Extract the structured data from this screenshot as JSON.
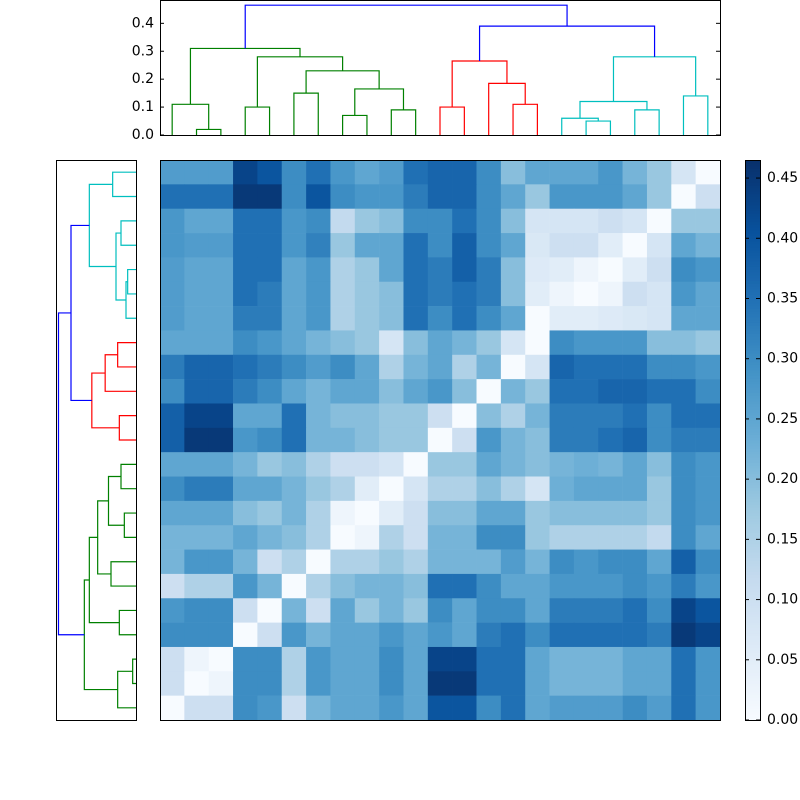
{
  "chart_data": {
    "type": "clustermap",
    "cmap": "Blues",
    "dendrogram_lim": [
      0,
      0.48
    ],
    "dendrogram_ticks": [
      {
        "value": 0,
        "label": "0.0"
      },
      {
        "value": 0.1,
        "label": "0.1"
      },
      {
        "value": 0.2,
        "label": "0.2"
      },
      {
        "value": 0.3,
        "label": "0.3"
      },
      {
        "value": 0.4,
        "label": "0.4"
      }
    ],
    "clim": [
      0,
      0.465
    ],
    "cticks": [
      {
        "value": 0,
        "label": "0.00"
      },
      {
        "value": 0.05,
        "label": "0.05"
      },
      {
        "value": 0.1,
        "label": "0.10"
      },
      {
        "value": 0.15,
        "label": "0.15"
      },
      {
        "value": 0.2,
        "label": "0.20"
      },
      {
        "value": 0.25,
        "label": "0.25"
      },
      {
        "value": 0.3,
        "label": "0.30"
      },
      {
        "value": 0.35,
        "label": "0.35"
      },
      {
        "value": 0.4,
        "label": "0.40"
      },
      {
        "value": 0.45,
        "label": "0.45"
      }
    ],
    "links": [
      {
        "color": "#008000",
        "x": [
          1,
          1,
          2,
          2
        ],
        "y": [
          0,
          0.02,
          0.02,
          0
        ]
      },
      {
        "color": "#008000",
        "x": [
          0,
          0,
          1.5,
          1.5
        ],
        "y": [
          0,
          0.11,
          0.11,
          0.02
        ]
      },
      {
        "color": "#008000",
        "x": [
          3,
          3,
          4,
          4
        ],
        "y": [
          0,
          0.1,
          0.1,
          0
        ]
      },
      {
        "color": "#008000",
        "x": [
          5,
          5,
          6,
          6
        ],
        "y": [
          0,
          0.15,
          0.15,
          0
        ]
      },
      {
        "color": "#008000",
        "x": [
          7,
          7,
          8,
          8
        ],
        "y": [
          0,
          0.07,
          0.07,
          0
        ]
      },
      {
        "color": "#008000",
        "x": [
          9,
          9,
          10,
          10
        ],
        "y": [
          0,
          0.09,
          0.09,
          0
        ]
      },
      {
        "color": "#008000",
        "x": [
          7.5,
          7.5,
          9.5,
          9.5
        ],
        "y": [
          0.07,
          0.165,
          0.165,
          0.09
        ]
      },
      {
        "color": "#008000",
        "x": [
          5.5,
          5.5,
          8.5,
          8.5
        ],
        "y": [
          0.15,
          0.23,
          0.23,
          0.165
        ]
      },
      {
        "color": "#008000",
        "x": [
          3.5,
          3.5,
          7,
          7
        ],
        "y": [
          0.1,
          0.28,
          0.28,
          0.23
        ]
      },
      {
        "color": "#008000",
        "x": [
          0.75,
          0.75,
          5.25,
          5.25
        ],
        "y": [
          0.11,
          0.31,
          0.31,
          0.28
        ]
      },
      {
        "color": "#ff0000",
        "x": [
          11,
          11,
          12,
          12
        ],
        "y": [
          0,
          0.1,
          0.1,
          0
        ]
      },
      {
        "color": "#ff0000",
        "x": [
          14,
          14,
          15,
          15
        ],
        "y": [
          0,
          0.11,
          0.11,
          0
        ]
      },
      {
        "color": "#ff0000",
        "x": [
          13,
          13,
          14.5,
          14.5
        ],
        "y": [
          0,
          0.185,
          0.185,
          0.11
        ]
      },
      {
        "color": "#ff0000",
        "x": [
          11.5,
          11.5,
          13.75,
          13.75
        ],
        "y": [
          0.1,
          0.265,
          0.265,
          0.185
        ]
      },
      {
        "color": "#00bfbf",
        "x": [
          17,
          17,
          18,
          18
        ],
        "y": [
          0,
          0.05,
          0.05,
          0
        ]
      },
      {
        "color": "#00bfbf",
        "x": [
          16,
          16,
          17.5,
          17.5
        ],
        "y": [
          0,
          0.06,
          0.06,
          0.05
        ]
      },
      {
        "color": "#00bfbf",
        "x": [
          19,
          19,
          20,
          20
        ],
        "y": [
          0,
          0.09,
          0.09,
          0
        ]
      },
      {
        "color": "#00bfbf",
        "x": [
          16.75,
          16.75,
          19.5,
          19.5
        ],
        "y": [
          0.06,
          0.12,
          0.12,
          0.09
        ]
      },
      {
        "color": "#00bfbf",
        "x": [
          21,
          21,
          22,
          22
        ],
        "y": [
          0,
          0.14,
          0.14,
          0
        ]
      },
      {
        "color": "#00bfbf",
        "x": [
          18.125,
          18.125,
          21.5,
          21.5
        ],
        "y": [
          0.12,
          0.28,
          0.28,
          0.14
        ]
      },
      {
        "color": "#0000ff",
        "x": [
          12.625,
          12.625,
          19.8125,
          19.8125
        ],
        "y": [
          0.265,
          0.39,
          0.39,
          0.28
        ]
      },
      {
        "color": "#0000ff",
        "x": [
          3,
          3,
          16.21875,
          16.21875
        ],
        "y": [
          0.31,
          0.465,
          0.465,
          0.39
        ]
      }
    ],
    "values": [
      [
        0.27,
        0.27,
        0.27,
        0.43,
        0.4,
        0.3,
        0.35,
        0.28,
        0.25,
        0.27,
        0.35,
        0.37,
        0.37,
        0.3,
        0.2,
        0.25,
        0.25,
        0.25,
        0.28,
        0.22,
        0.18,
        0.08,
        0.0
      ],
      [
        0.35,
        0.35,
        0.35,
        0.45,
        0.45,
        0.3,
        0.4,
        0.3,
        0.28,
        0.28,
        0.33,
        0.37,
        0.37,
        0.3,
        0.25,
        0.18,
        0.28,
        0.28,
        0.28,
        0.25,
        0.18,
        0.0,
        0.1
      ],
      [
        0.28,
        0.25,
        0.25,
        0.35,
        0.35,
        0.28,
        0.3,
        0.12,
        0.18,
        0.2,
        0.3,
        0.3,
        0.35,
        0.3,
        0.2,
        0.08,
        0.08,
        0.08,
        0.1,
        0.08,
        0.0,
        0.18,
        0.18
      ],
      [
        0.28,
        0.27,
        0.27,
        0.35,
        0.35,
        0.28,
        0.32,
        0.18,
        0.25,
        0.25,
        0.35,
        0.3,
        0.38,
        0.3,
        0.25,
        0.07,
        0.1,
        0.1,
        0.05,
        0.0,
        0.08,
        0.25,
        0.22
      ],
      [
        0.27,
        0.25,
        0.25,
        0.35,
        0.35,
        0.25,
        0.28,
        0.15,
        0.18,
        0.25,
        0.35,
        0.33,
        0.38,
        0.33,
        0.2,
        0.06,
        0.05,
        0.02,
        0.0,
        0.05,
        0.1,
        0.3,
        0.28
      ],
      [
        0.27,
        0.25,
        0.25,
        0.35,
        0.33,
        0.25,
        0.28,
        0.15,
        0.18,
        0.2,
        0.35,
        0.33,
        0.35,
        0.33,
        0.2,
        0.05,
        0.02,
        0.0,
        0.02,
        0.1,
        0.08,
        0.28,
        0.25
      ],
      [
        0.27,
        0.25,
        0.25,
        0.33,
        0.33,
        0.25,
        0.28,
        0.15,
        0.18,
        0.2,
        0.35,
        0.3,
        0.35,
        0.3,
        0.25,
        0.0,
        0.05,
        0.05,
        0.06,
        0.07,
        0.08,
        0.25,
        0.25
      ],
      [
        0.25,
        0.25,
        0.25,
        0.3,
        0.28,
        0.25,
        0.22,
        0.2,
        0.18,
        0.08,
        0.2,
        0.25,
        0.22,
        0.18,
        0.08,
        0.0,
        0.3,
        0.28,
        0.28,
        0.28,
        0.2,
        0.2,
        0.18
      ],
      [
        0.33,
        0.37,
        0.37,
        0.35,
        0.33,
        0.3,
        0.27,
        0.3,
        0.25,
        0.15,
        0.22,
        0.25,
        0.15,
        0.22,
        0.0,
        0.08,
        0.37,
        0.35,
        0.35,
        0.35,
        0.3,
        0.3,
        0.28
      ],
      [
        0.3,
        0.37,
        0.37,
        0.33,
        0.3,
        0.25,
        0.22,
        0.25,
        0.25,
        0.2,
        0.25,
        0.28,
        0.2,
        0.0,
        0.22,
        0.18,
        0.35,
        0.35,
        0.37,
        0.37,
        0.35,
        0.35,
        0.3
      ],
      [
        0.38,
        0.43,
        0.43,
        0.25,
        0.25,
        0.35,
        0.22,
        0.2,
        0.2,
        0.18,
        0.18,
        0.1,
        0.0,
        0.2,
        0.15,
        0.22,
        0.33,
        0.33,
        0.33,
        0.35,
        0.3,
        0.35,
        0.35
      ],
      [
        0.38,
        0.45,
        0.45,
        0.28,
        0.3,
        0.35,
        0.22,
        0.22,
        0.2,
        0.18,
        0.18,
        0.0,
        0.1,
        0.28,
        0.22,
        0.2,
        0.33,
        0.33,
        0.35,
        0.37,
        0.3,
        0.33,
        0.33
      ],
      [
        0.25,
        0.25,
        0.25,
        0.22,
        0.18,
        0.2,
        0.15,
        0.1,
        0.1,
        0.08,
        0.0,
        0.18,
        0.18,
        0.25,
        0.22,
        0.2,
        0.22,
        0.23,
        0.22,
        0.25,
        0.2,
        0.3,
        0.28
      ],
      [
        0.3,
        0.33,
        0.33,
        0.25,
        0.25,
        0.22,
        0.18,
        0.15,
        0.05,
        0.0,
        0.08,
        0.15,
        0.15,
        0.2,
        0.15,
        0.08,
        0.23,
        0.25,
        0.25,
        0.25,
        0.18,
        0.3,
        0.28
      ],
      [
        0.25,
        0.25,
        0.25,
        0.2,
        0.18,
        0.22,
        0.15,
        0.02,
        0.0,
        0.05,
        0.1,
        0.2,
        0.2,
        0.25,
        0.25,
        0.18,
        0.2,
        0.2,
        0.2,
        0.2,
        0.18,
        0.3,
        0.28
      ],
      [
        0.22,
        0.22,
        0.22,
        0.25,
        0.22,
        0.2,
        0.15,
        0.0,
        0.02,
        0.15,
        0.1,
        0.22,
        0.22,
        0.3,
        0.3,
        0.18,
        0.15,
        0.15,
        0.15,
        0.15,
        0.12,
        0.3,
        0.25
      ],
      [
        0.22,
        0.28,
        0.28,
        0.22,
        0.1,
        0.15,
        0.0,
        0.15,
        0.15,
        0.18,
        0.15,
        0.22,
        0.22,
        0.22,
        0.27,
        0.22,
        0.3,
        0.28,
        0.3,
        0.3,
        0.25,
        0.38,
        0.3
      ],
      [
        0.1,
        0.15,
        0.15,
        0.28,
        0.22,
        0.0,
        0.15,
        0.2,
        0.22,
        0.22,
        0.2,
        0.35,
        0.35,
        0.3,
        0.25,
        0.25,
        0.28,
        0.28,
        0.28,
        0.3,
        0.28,
        0.33,
        0.28
      ],
      [
        0.28,
        0.3,
        0.3,
        0.1,
        0.0,
        0.22,
        0.1,
        0.25,
        0.18,
        0.22,
        0.18,
        0.3,
        0.25,
        0.3,
        0.3,
        0.25,
        0.33,
        0.33,
        0.33,
        0.35,
        0.3,
        0.43,
        0.4
      ],
      [
        0.3,
        0.3,
        0.3,
        0.0,
        0.1,
        0.28,
        0.22,
        0.25,
        0.25,
        0.28,
        0.25,
        0.28,
        0.25,
        0.33,
        0.35,
        0.3,
        0.35,
        0.35,
        0.35,
        0.35,
        0.33,
        0.45,
        0.43
      ],
      [
        0.1,
        0.02,
        0.0,
        0.3,
        0.3,
        0.15,
        0.28,
        0.25,
        0.25,
        0.3,
        0.25,
        0.43,
        0.43,
        0.35,
        0.35,
        0.25,
        0.22,
        0.22,
        0.22,
        0.25,
        0.25,
        0.35,
        0.28
      ],
      [
        0.1,
        0.0,
        0.02,
        0.3,
        0.3,
        0.15,
        0.28,
        0.25,
        0.25,
        0.3,
        0.25,
        0.45,
        0.45,
        0.35,
        0.35,
        0.25,
        0.22,
        0.22,
        0.22,
        0.25,
        0.25,
        0.35,
        0.28
      ],
      [
        0.0,
        0.1,
        0.1,
        0.3,
        0.28,
        0.1,
        0.22,
        0.25,
        0.25,
        0.28,
        0.25,
        0.4,
        0.4,
        0.3,
        0.35,
        0.25,
        0.27,
        0.27,
        0.27,
        0.3,
        0.27,
        0.35,
        0.28
      ]
    ]
  }
}
